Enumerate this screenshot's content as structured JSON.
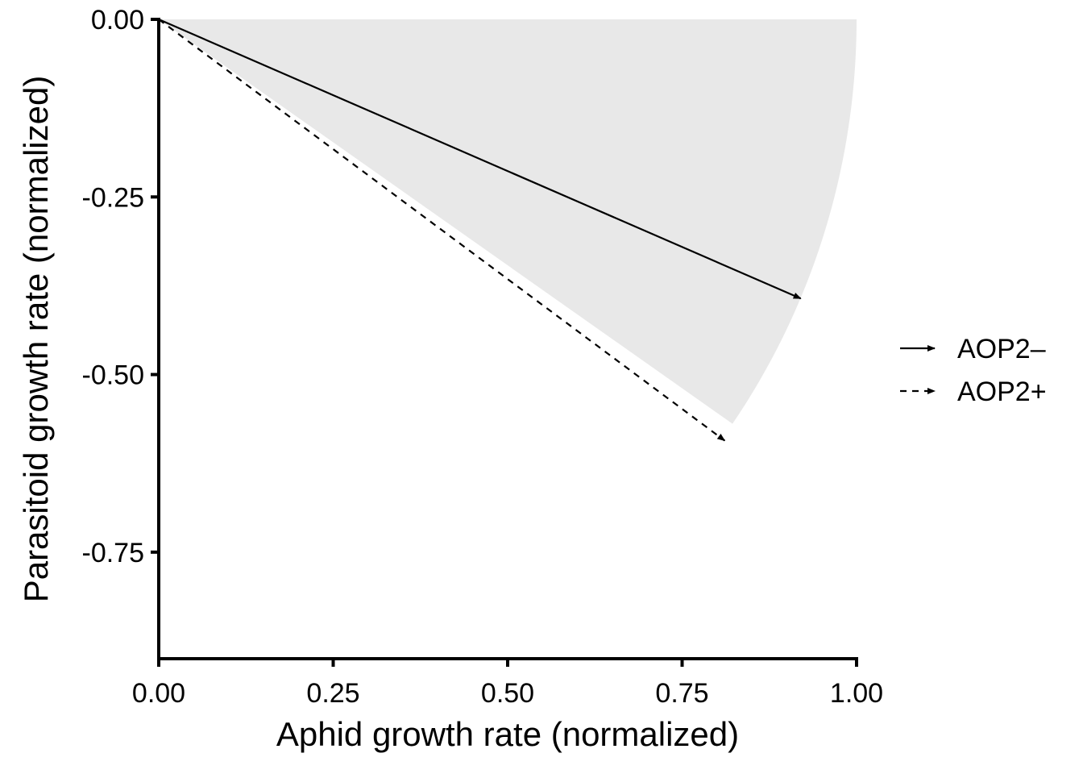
{
  "chart_data": {
    "type": "line",
    "xlabel": "Aphid growth rate (normalized)",
    "ylabel": "Parasitoid growth rate (normalized)",
    "xlim": [
      0,
      1
    ],
    "ylim": [
      -0.9,
      0
    ],
    "x_ticks": [
      "0.00",
      "0.25",
      "0.50",
      "0.75",
      "1.00"
    ],
    "y_ticks": [
      "0.00",
      "-0.25",
      "-0.50",
      "-0.75"
    ],
    "x_tick_values": [
      0,
      0.25,
      0.5,
      0.75,
      1.0
    ],
    "y_tick_values": [
      0,
      -0.25,
      -0.5,
      -0.75
    ],
    "grid": false,
    "legend_position": "right",
    "shaded_sector": {
      "origin": [
        0,
        0
      ],
      "radius": 1.0,
      "angle_from_deg": 0,
      "angle_to_deg": -34.7,
      "color": "#e8e8e8"
    },
    "series": [
      {
        "name": "AOP2–",
        "style": "solid-arrow",
        "x": [
          0,
          0.92
        ],
        "y": [
          0,
          -0.393
        ]
      },
      {
        "name": "AOP2+",
        "style": "dashed-arrow",
        "x": [
          0,
          0.811
        ],
        "y": [
          0,
          -0.593
        ]
      }
    ]
  }
}
